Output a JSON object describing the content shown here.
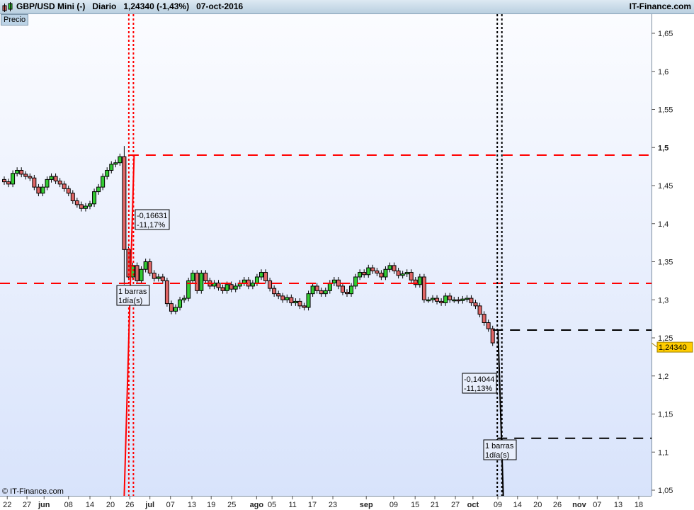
{
  "header": {
    "title": "GBP/USD Mini (-)",
    "period": "Diario",
    "price": "1,24340 (-1,43%)",
    "date": "07-oct-2016",
    "brand": "IT-Finance.com"
  },
  "panel_label": "Precio",
  "copyright": "© IT-Finance.com",
  "last_price_tag": "1,24340",
  "colors": {
    "up": "#33cc33",
    "down": "#e06666",
    "red_tool": "#ff0000",
    "black_tool": "#000000",
    "tag": "#ffcc00"
  },
  "chart_data": {
    "type": "candlestick",
    "title": "GBP/USD Mini (-)",
    "ylim": [
      1.045,
      1.675
    ],
    "y_ticks": [
      1.65,
      1.6,
      1.55,
      1.5,
      1.45,
      1.4,
      1.35,
      1.3,
      1.25,
      1.2,
      1.15,
      1.1,
      1.05
    ],
    "y_tick_labels": [
      "1,65",
      "1,6",
      "1,55",
      "1,5",
      "1,45",
      "1,4",
      "1,35",
      "1,3",
      "1,25",
      "1,2",
      "1,15",
      "1,1",
      "1,05"
    ],
    "x_ticks": [
      {
        "label": "22",
        "bar": 0.7
      },
      {
        "label": "27",
        "bar": 5.3
      },
      {
        "label": "jun",
        "bar": 9.3
      },
      {
        "label": "08",
        "bar": 15
      },
      {
        "label": "14",
        "bar": 20
      },
      {
        "label": "20",
        "bar": 24.8
      },
      {
        "label": "26",
        "bar": 29.3
      },
      {
        "label": "jul",
        "bar": 34
      },
      {
        "label": "07",
        "bar": 38.8
      },
      {
        "label": "13",
        "bar": 43.8
      },
      {
        "label": "19",
        "bar": 48.3
      },
      {
        "label": "25",
        "bar": 53.1
      },
      {
        "label": "ago",
        "bar": 58.9
      },
      {
        "label": "05",
        "bar": 62.5
      },
      {
        "label": "11",
        "bar": 67.3
      },
      {
        "label": "17",
        "bar": 71.9
      },
      {
        "label": "23",
        "bar": 76.7
      },
      {
        "label": "sep",
        "bar": 84.5
      },
      {
        "label": "09",
        "bar": 90.9
      },
      {
        "label": "15",
        "bar": 95.9
      },
      {
        "label": "21",
        "bar": 100.5
      },
      {
        "label": "27",
        "bar": 105.3
      },
      {
        "label": "oct",
        "bar": 109.4
      },
      {
        "label": "09",
        "bar": 115.2
      },
      {
        "label": "14",
        "bar": 119.8
      },
      {
        "label": "20",
        "bar": 124.5
      },
      {
        "label": "26",
        "bar": 129.1
      },
      {
        "label": "nov",
        "bar": 134.2
      },
      {
        "label": "07",
        "bar": 138.4
      },
      {
        "label": "13",
        "bar": 143.3
      },
      {
        "label": "18",
        "bar": 148.1
      }
    ],
    "first_open": 1.458,
    "close": [
      1.455,
      1.452,
      1.466,
      1.47,
      1.465,
      1.462,
      1.46,
      1.448,
      1.44,
      1.448,
      1.458,
      1.462,
      1.456,
      1.452,
      1.446,
      1.44,
      1.43,
      1.425,
      1.42,
      1.423,
      1.426,
      1.442,
      1.448,
      1.462,
      1.47,
      1.478,
      1.48,
      1.488,
      1.366,
      1.33,
      1.345,
      1.325,
      1.34,
      1.35,
      1.335,
      1.328,
      1.33,
      1.325,
      1.295,
      1.285,
      1.29,
      1.3,
      1.302,
      1.325,
      1.335,
      1.312,
      1.335,
      1.325,
      1.318,
      1.322,
      1.316,
      1.312,
      1.32,
      1.314,
      1.318,
      1.322,
      1.326,
      1.318,
      1.322,
      1.33,
      1.336,
      1.325,
      1.315,
      1.308,
      1.305,
      1.3,
      1.303,
      1.296,
      1.298,
      1.292,
      1.29,
      1.308,
      1.318,
      1.312,
      1.308,
      1.312,
      1.322,
      1.326,
      1.318,
      1.31,
      1.308,
      1.318,
      1.33,
      1.336,
      1.333,
      1.342,
      1.338,
      1.335,
      1.33,
      1.34,
      1.345,
      1.338,
      1.332,
      1.334,
      1.336,
      1.326,
      1.32,
      1.33,
      1.3,
      1.3,
      1.302,
      1.298,
      1.296,
      1.305,
      1.3,
      1.3,
      1.299,
      1.301,
      1.302,
      1.296,
      1.292,
      1.281,
      1.27,
      1.262,
      1.2434
    ],
    "annotations": [
      {
        "color": "red",
        "from_bar": 28,
        "to_bar": 29,
        "high_level": 1.49,
        "low_level": 1.3216,
        "change": "-0,16631",
        "pct": "-11,17%",
        "bars": "1 barras",
        "days": "1día(s)"
      },
      {
        "color": "black",
        "from_bar": 114,
        "to_bar": 115,
        "high_level": 1.2602,
        "low_level": 1.1181,
        "change": "-0,14044",
        "pct": "-11,13%",
        "bars": "1 barras",
        "days": "1día(s)"
      }
    ]
  }
}
